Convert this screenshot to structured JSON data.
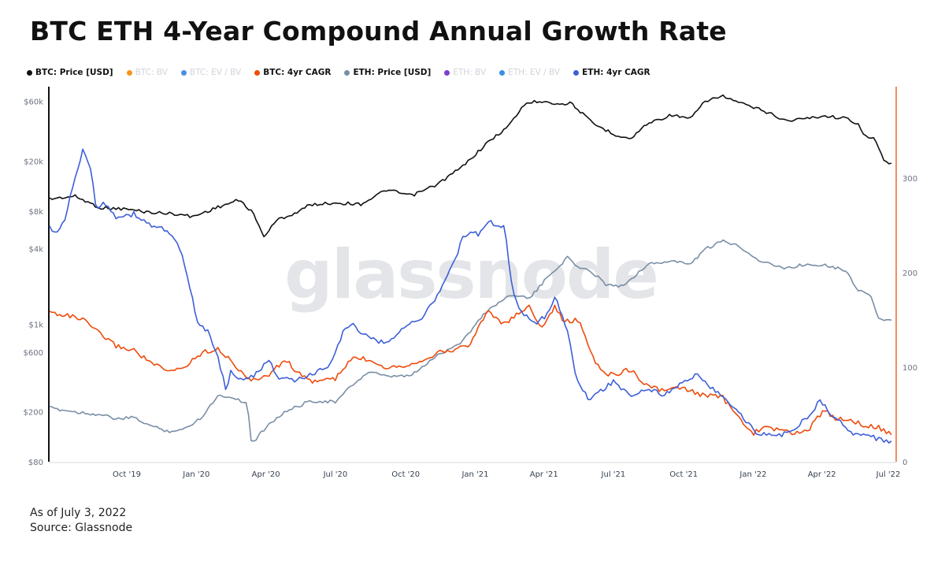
{
  "page": {
    "title": "BTC ETH 4-Year Compound Annual Growth Rate",
    "as_of": "As of July 3, 2022",
    "source": "Source: Glassnode"
  },
  "legend": [
    {
      "label": "BTC: Price [USD]",
      "color": "#111111",
      "active": true
    },
    {
      "label": "BTC: BV",
      "color": "#f7931a",
      "active": false
    },
    {
      "label": "BTC: EV / BV",
      "color": "#4a90e2",
      "active": false
    },
    {
      "label": "BTC: 4yr CAGR",
      "color": "#ee4b0c",
      "active": true
    },
    {
      "label": "ETH: Price [USD]",
      "color": "#7a8ea6",
      "active": true
    },
    {
      "label": "ETH: BV",
      "color": "#7b3fd0",
      "active": false
    },
    {
      "label": "ETH: EV / BV",
      "color": "#3a8ee6",
      "active": false
    },
    {
      "label": "ETH: 4yr CAGR",
      "color": "#3d5fd9",
      "active": true
    }
  ],
  "chart_data": {
    "type": "line",
    "title": "BTC ETH 4-Year Compound Annual Growth Rate",
    "watermark": "glassnode",
    "x_range": [
      "2019-08-01",
      "2022-07-03"
    ],
    "x_ticks": [
      {
        "label": "Oct '19",
        "t": 0.0917
      },
      {
        "label": "Jan '20",
        "t": 0.1743
      },
      {
        "label": "Apr '20",
        "t": 0.2569
      },
      {
        "label": "Jul '20",
        "t": 0.3395
      },
      {
        "label": "Oct '20",
        "t": 0.423
      },
      {
        "label": "Jan '21",
        "t": 0.5056
      },
      {
        "label": "Apr '21",
        "t": 0.5872
      },
      {
        "label": "Jul '21",
        "t": 0.6697
      },
      {
        "label": "Oct '21",
        "t": 0.7532
      },
      {
        "label": "Jan '22",
        "t": 0.8358
      },
      {
        "label": "Apr '22",
        "t": 0.9174
      },
      {
        "label": "Jul '22",
        "t": 1.0
      }
    ],
    "y_left": {
      "scale": "log",
      "range": [
        80,
        70000
      ],
      "ticks": [
        {
          "label": "$60k",
          "value": 60000
        },
        {
          "label": "$20k",
          "value": 20000
        },
        {
          "label": "$8k",
          "value": 8000
        },
        {
          "label": "$4k",
          "value": 4000
        },
        {
          "label": "$1k",
          "value": 1000
        },
        {
          "label": "$600",
          "value": 600
        },
        {
          "label": "$200",
          "value": 200
        },
        {
          "label": "$80",
          "value": 80
        }
      ]
    },
    "y_right": {
      "scale": "linear",
      "range": [
        0,
        390
      ],
      "ticks": [
        {
          "label": "0",
          "value": 0
        },
        {
          "label": "100",
          "value": 100
        },
        {
          "label": "200",
          "value": 200
        },
        {
          "label": "300",
          "value": 300
        }
      ]
    },
    "series": [
      {
        "name": "BTC: Price [USD]",
        "axis": "left",
        "color": "#111111",
        "points": [
          [
            0,
            10000
          ],
          [
            0.03,
            10500
          ],
          [
            0.06,
            8500
          ],
          [
            0.09,
            8300
          ],
          [
            0.12,
            7800
          ],
          [
            0.15,
            7600
          ],
          [
            0.17,
            7200
          ],
          [
            0.2,
            8600
          ],
          [
            0.225,
            9800
          ],
          [
            0.24,
            8000
          ],
          [
            0.255,
            5000
          ],
          [
            0.27,
            6800
          ],
          [
            0.29,
            7600
          ],
          [
            0.31,
            9000
          ],
          [
            0.34,
            9300
          ],
          [
            0.37,
            9100
          ],
          [
            0.4,
            11800
          ],
          [
            0.43,
            10600
          ],
          [
            0.46,
            13000
          ],
          [
            0.49,
            18000
          ],
          [
            0.52,
            28000
          ],
          [
            0.545,
            38000
          ],
          [
            0.565,
            58000
          ],
          [
            0.59,
            61000
          ],
          [
            0.6,
            57000
          ],
          [
            0.62,
            58000
          ],
          [
            0.645,
            40000
          ],
          [
            0.67,
            33000
          ],
          [
            0.69,
            30000
          ],
          [
            0.71,
            40000
          ],
          [
            0.74,
            47000
          ],
          [
            0.76,
            43000
          ],
          [
            0.78,
            61000
          ],
          [
            0.8,
            66000
          ],
          [
            0.82,
            58000
          ],
          [
            0.85,
            50000
          ],
          [
            0.875,
            42000
          ],
          [
            0.9,
            44000
          ],
          [
            0.92,
            46000
          ],
          [
            0.945,
            44000
          ],
          [
            0.96,
            40000
          ],
          [
            0.97,
            31000
          ],
          [
            0.98,
            30000
          ],
          [
            0.99,
            21000
          ],
          [
            1.0,
            19000
          ]
        ]
      },
      {
        "name": "ETH: Price [USD]",
        "axis": "left",
        "color": "#7a8ea6",
        "points": [
          [
            0,
            215
          ],
          [
            0.03,
            200
          ],
          [
            0.06,
            190
          ],
          [
            0.08,
            175
          ],
          [
            0.1,
            180
          ],
          [
            0.12,
            155
          ],
          [
            0.14,
            140
          ],
          [
            0.16,
            145
          ],
          [
            0.18,
            180
          ],
          [
            0.2,
            270
          ],
          [
            0.22,
            260
          ],
          [
            0.235,
            230
          ],
          [
            0.24,
            110
          ],
          [
            0.26,
            160
          ],
          [
            0.28,
            200
          ],
          [
            0.31,
            245
          ],
          [
            0.34,
            240
          ],
          [
            0.36,
            330
          ],
          [
            0.38,
            420
          ],
          [
            0.4,
            380
          ],
          [
            0.43,
            390
          ],
          [
            0.46,
            560
          ],
          [
            0.49,
            730
          ],
          [
            0.52,
            1300
          ],
          [
            0.55,
            1750
          ],
          [
            0.57,
            1600
          ],
          [
            0.59,
            2300
          ],
          [
            0.6,
            2700
          ],
          [
            0.615,
            3400
          ],
          [
            0.63,
            2800
          ],
          [
            0.645,
            2600
          ],
          [
            0.66,
            2100
          ],
          [
            0.68,
            2000
          ],
          [
            0.71,
            3000
          ],
          [
            0.74,
            3200
          ],
          [
            0.76,
            3000
          ],
          [
            0.78,
            4000
          ],
          [
            0.8,
            4600
          ],
          [
            0.82,
            4200
          ],
          [
            0.84,
            3300
          ],
          [
            0.87,
            2800
          ],
          [
            0.9,
            3000
          ],
          [
            0.92,
            3000
          ],
          [
            0.945,
            2700
          ],
          [
            0.96,
            1900
          ],
          [
            0.975,
            1700
          ],
          [
            0.985,
            1100
          ],
          [
            1.0,
            1050
          ]
        ]
      },
      {
        "name": "BTC: 4yr CAGR",
        "axis": "right",
        "color": "#ee4b0c",
        "points": [
          [
            0,
            158
          ],
          [
            0.02,
            155
          ],
          [
            0.04,
            150
          ],
          [
            0.06,
            135
          ],
          [
            0.08,
            122
          ],
          [
            0.1,
            118
          ],
          [
            0.12,
            105
          ],
          [
            0.14,
            95
          ],
          [
            0.16,
            100
          ],
          [
            0.18,
            115
          ],
          [
            0.2,
            120
          ],
          [
            0.22,
            102
          ],
          [
            0.24,
            85
          ],
          [
            0.26,
            92
          ],
          [
            0.28,
            108
          ],
          [
            0.3,
            90
          ],
          [
            0.31,
            85
          ],
          [
            0.34,
            88
          ],
          [
            0.36,
            110
          ],
          [
            0.38,
            108
          ],
          [
            0.4,
            100
          ],
          [
            0.43,
            103
          ],
          [
            0.46,
            115
          ],
          [
            0.48,
            118
          ],
          [
            0.5,
            125
          ],
          [
            0.52,
            160
          ],
          [
            0.54,
            145
          ],
          [
            0.555,
            155
          ],
          [
            0.57,
            165
          ],
          [
            0.585,
            140
          ],
          [
            0.6,
            165
          ],
          [
            0.61,
            148
          ],
          [
            0.63,
            150
          ],
          [
            0.64,
            120
          ],
          [
            0.655,
            95
          ],
          [
            0.67,
            92
          ],
          [
            0.69,
            98
          ],
          [
            0.71,
            80
          ],
          [
            0.73,
            75
          ],
          [
            0.75,
            78
          ],
          [
            0.77,
            72
          ],
          [
            0.78,
            70
          ],
          [
            0.8,
            68
          ],
          [
            0.81,
            55
          ],
          [
            0.825,
            40
          ],
          [
            0.835,
            30
          ],
          [
            0.85,
            36
          ],
          [
            0.87,
            34
          ],
          [
            0.88,
            30
          ],
          [
            0.9,
            32
          ],
          [
            0.92,
            55
          ],
          [
            0.935,
            45
          ],
          [
            0.95,
            45
          ],
          [
            0.97,
            38
          ],
          [
            0.985,
            36
          ],
          [
            1.0,
            28
          ]
        ]
      },
      {
        "name": "ETH: 4yr CAGR",
        "axis": "right",
        "color": "#3d5fd9",
        "points": [
          [
            0,
            248
          ],
          [
            0.01,
            240
          ],
          [
            0.02,
            262
          ],
          [
            0.03,
            300
          ],
          [
            0.04,
            330
          ],
          [
            0.05,
            305
          ],
          [
            0.055,
            268
          ],
          [
            0.065,
            275
          ],
          [
            0.08,
            258
          ],
          [
            0.1,
            262
          ],
          [
            0.12,
            250
          ],
          [
            0.14,
            245
          ],
          [
            0.155,
            225
          ],
          [
            0.165,
            190
          ],
          [
            0.175,
            150
          ],
          [
            0.19,
            135
          ],
          [
            0.2,
            110
          ],
          [
            0.21,
            75
          ],
          [
            0.215,
            95
          ],
          [
            0.23,
            85
          ],
          [
            0.25,
            95
          ],
          [
            0.26,
            110
          ],
          [
            0.27,
            90
          ],
          [
            0.29,
            85
          ],
          [
            0.31,
            92
          ],
          [
            0.33,
            100
          ],
          [
            0.34,
            118
          ],
          [
            0.35,
            140
          ],
          [
            0.36,
            145
          ],
          [
            0.38,
            130
          ],
          [
            0.4,
            125
          ],
          [
            0.42,
            142
          ],
          [
            0.44,
            150
          ],
          [
            0.46,
            175
          ],
          [
            0.48,
            210
          ],
          [
            0.49,
            235
          ],
          [
            0.5,
            245
          ],
          [
            0.51,
            240
          ],
          [
            0.52,
            255
          ],
          [
            0.53,
            250
          ],
          [
            0.54,
            250
          ],
          [
            0.55,
            180
          ],
          [
            0.56,
            160
          ],
          [
            0.575,
            145
          ],
          [
            0.59,
            155
          ],
          [
            0.6,
            175
          ],
          [
            0.615,
            140
          ],
          [
            0.625,
            90
          ],
          [
            0.64,
            65
          ],
          [
            0.655,
            75
          ],
          [
            0.67,
            85
          ],
          [
            0.69,
            70
          ],
          [
            0.71,
            78
          ],
          [
            0.73,
            70
          ],
          [
            0.75,
            82
          ],
          [
            0.77,
            93
          ],
          [
            0.79,
            75
          ],
          [
            0.81,
            60
          ],
          [
            0.825,
            45
          ],
          [
            0.84,
            30
          ],
          [
            0.86,
            28
          ],
          [
            0.88,
            30
          ],
          [
            0.89,
            40
          ],
          [
            0.905,
            50
          ],
          [
            0.915,
            66
          ],
          [
            0.93,
            48
          ],
          [
            0.945,
            38
          ],
          [
            0.955,
            30
          ],
          [
            0.97,
            28
          ],
          [
            0.985,
            24
          ],
          [
            1.0,
            21
          ]
        ]
      }
    ]
  }
}
